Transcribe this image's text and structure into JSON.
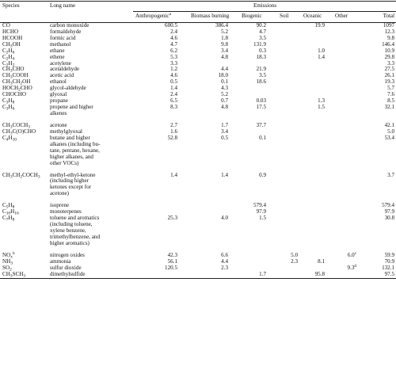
{
  "headers": {
    "species": "Species",
    "long_name": "Long name",
    "emissions": "Emissions",
    "columns": [
      "Anthropogenic",
      "Biomass burning",
      "Biogenic",
      "Soil",
      "Oceanic",
      "Other",
      "Total"
    ],
    "anthropogenic_note": "a"
  },
  "rows": [
    {
      "sp": [
        "CO"
      ],
      "ln": [
        "carbon monoxide"
      ],
      "v": [
        "600.5",
        "386.4",
        "90.2",
        "",
        "19.9",
        "",
        "1097"
      ]
    },
    {
      "sp": [
        "HCHO"
      ],
      "ln": [
        "formaldehyde"
      ],
      "v": [
        "2.4",
        "5.2",
        "4.7",
        "",
        "",
        "",
        "12.3"
      ]
    },
    {
      "sp": [
        "HCOOH"
      ],
      "ln": [
        "formic acid"
      ],
      "v": [
        "4.6",
        "1.8",
        "3.5",
        "",
        "",
        "",
        "9.8"
      ]
    },
    {
      "sp": [
        "CH",
        "3",
        "OH"
      ],
      "ln": [
        "methanol"
      ],
      "v": [
        "4.7",
        "9.8",
        "131.9",
        "",
        "",
        "",
        "146.4"
      ]
    },
    {
      "sp": [
        "C",
        "2",
        "H",
        "6"
      ],
      "ln": [
        "ethane"
      ],
      "v": [
        "6.2",
        "3.4",
        "0.3",
        "",
        "1.0",
        "",
        "10.9"
      ]
    },
    {
      "sp": [
        "C",
        "2",
        "H",
        "4"
      ],
      "ln": [
        "ethene"
      ],
      "v": [
        "5.3",
        "4.8",
        "18.3",
        "",
        "1.4",
        "",
        "29.8"
      ]
    },
    {
      "sp": [
        "C",
        "2",
        "H",
        "2"
      ],
      "ln": [
        "acetylene"
      ],
      "v": [
        "3.3",
        "",
        "",
        "",
        "",
        "",
        "3.3"
      ]
    },
    {
      "sp": [
        "CH",
        "3",
        "CHO"
      ],
      "ln": [
        "acetaldehyde"
      ],
      "v": [
        "1.2",
        "4.4",
        "21.9",
        "",
        "",
        "",
        "27.5"
      ]
    },
    {
      "sp": [
        "CH",
        "3",
        "COOH"
      ],
      "ln": [
        "acetic acid"
      ],
      "v": [
        "4.6",
        "18.0",
        "3.5",
        "",
        "",
        "",
        "26.1"
      ]
    },
    {
      "sp": [
        "CH",
        "3",
        "CH",
        "2",
        "OH"
      ],
      "ln": [
        "ethanol"
      ],
      "v": [
        "0.5",
        "0.1",
        "18.6",
        "",
        "",
        "",
        "19.3"
      ]
    },
    {
      "sp": [
        "HOCH",
        "2",
        "CHO"
      ],
      "ln": [
        "glycol-aldehyde"
      ],
      "v": [
        "1.4",
        "4.3",
        "",
        "",
        "",
        "",
        "5.7"
      ]
    },
    {
      "sp": [
        "CHOCHO"
      ],
      "ln": [
        "glyoxal"
      ],
      "v": [
        "2.4",
        "5.2",
        "",
        "",
        "",
        "",
        "7.6"
      ]
    },
    {
      "sp": [
        "C",
        "3",
        "H",
        "8"
      ],
      "ln": [
        "propane"
      ],
      "v": [
        "6.5",
        "0.7",
        "0.03",
        "",
        "1.3",
        "",
        "8.5"
      ]
    },
    {
      "sp": [
        "C",
        "3",
        "H",
        "6"
      ],
      "ln": [
        "propene and higher",
        "alkenes"
      ],
      "v": [
        "8.3",
        "4.8",
        "17.5",
        "",
        "1.5",
        "",
        "32.1"
      ]
    },
    {
      "sp": [
        "CH",
        "3",
        "COCH",
        "3"
      ],
      "ln": [
        "acetone"
      ],
      "v": [
        "2.7",
        "1.7",
        "37.7",
        "",
        "",
        "",
        "42.1"
      ],
      "gap": true
    },
    {
      "sp": [
        "CH",
        "3",
        "C(O)CHO"
      ],
      "ln": [
        "methylglyoxal"
      ],
      "v": [
        "1.6",
        "3.4",
        "",
        "",
        "",
        "",
        "5.0"
      ]
    },
    {
      "sp": [
        "C",
        "4",
        "H",
        "10"
      ],
      "ln": [
        "butane and higher",
        "alkanes (including bu-",
        "tane, pentane, hexane,",
        "higher alkanes, and",
        "other VOCs)"
      ],
      "v": [
        "52.8",
        "0.5",
        "0.1",
        "",
        "",
        "",
        "53.4"
      ]
    },
    {
      "sp": [
        "CH",
        "3",
        "CH",
        "2",
        "COCH",
        "3"
      ],
      "ln": [
        "methyl-ethyl-ketone",
        "(including higher",
        "ketones except for",
        "acetone)"
      ],
      "v": [
        "1.4",
        "1.4",
        "0.9",
        "",
        "",
        "",
        "3.7"
      ],
      "gap": true
    },
    {
      "sp": [
        "C",
        "5",
        "H",
        "8"
      ],
      "ln": [
        "isoprene"
      ],
      "v": [
        "",
        "",
        "579.4",
        "",
        "",
        "",
        "579.4"
      ],
      "gap": true
    },
    {
      "sp": [
        "C",
        "10",
        "H",
        "16"
      ],
      "ln": [
        "monoterpenes"
      ],
      "v": [
        "",
        "",
        "97.9",
        "",
        "",
        "",
        "97.9"
      ]
    },
    {
      "sp": [
        "C",
        "7",
        "H",
        "8"
      ],
      "ln": [
        "toluene and aromatics",
        "(including toluene,",
        "xylene benzene,",
        "trimethylbenzene, and",
        "higher aromatics)"
      ],
      "v": [
        "25.3",
        "4.0",
        "1.5",
        "",
        "",
        "",
        "30.8"
      ]
    },
    {
      "sp": [
        "NO",
        "x"
      ],
      "sp_note": "b",
      "ln": [
        "nitrogen oxides"
      ],
      "v": [
        "42.3",
        "6.6",
        "",
        "5.0",
        "",
        "6.0",
        "59.9"
      ],
      "other_note": "c",
      "gap": true
    },
    {
      "sp": [
        "NH",
        "3"
      ],
      "ln": [
        "ammonia"
      ],
      "v": [
        "56.1",
        "4.4",
        "",
        "2.3",
        "8.1",
        "",
        "70.9"
      ]
    },
    {
      "sp": [
        "SO",
        "2"
      ],
      "ln": [
        "sulfur dioxide"
      ],
      "v": [
        "120.5",
        "2.3",
        "",
        "",
        "",
        "9.3",
        "132.1"
      ],
      "other_note": "d"
    },
    {
      "sp": [
        "CH",
        "3",
        "SCH",
        "3"
      ],
      "ln": [
        "dimethylsulfide"
      ],
      "v": [
        "",
        "",
        "1.7",
        "",
        "95.8",
        "",
        "97.5"
      ]
    }
  ]
}
